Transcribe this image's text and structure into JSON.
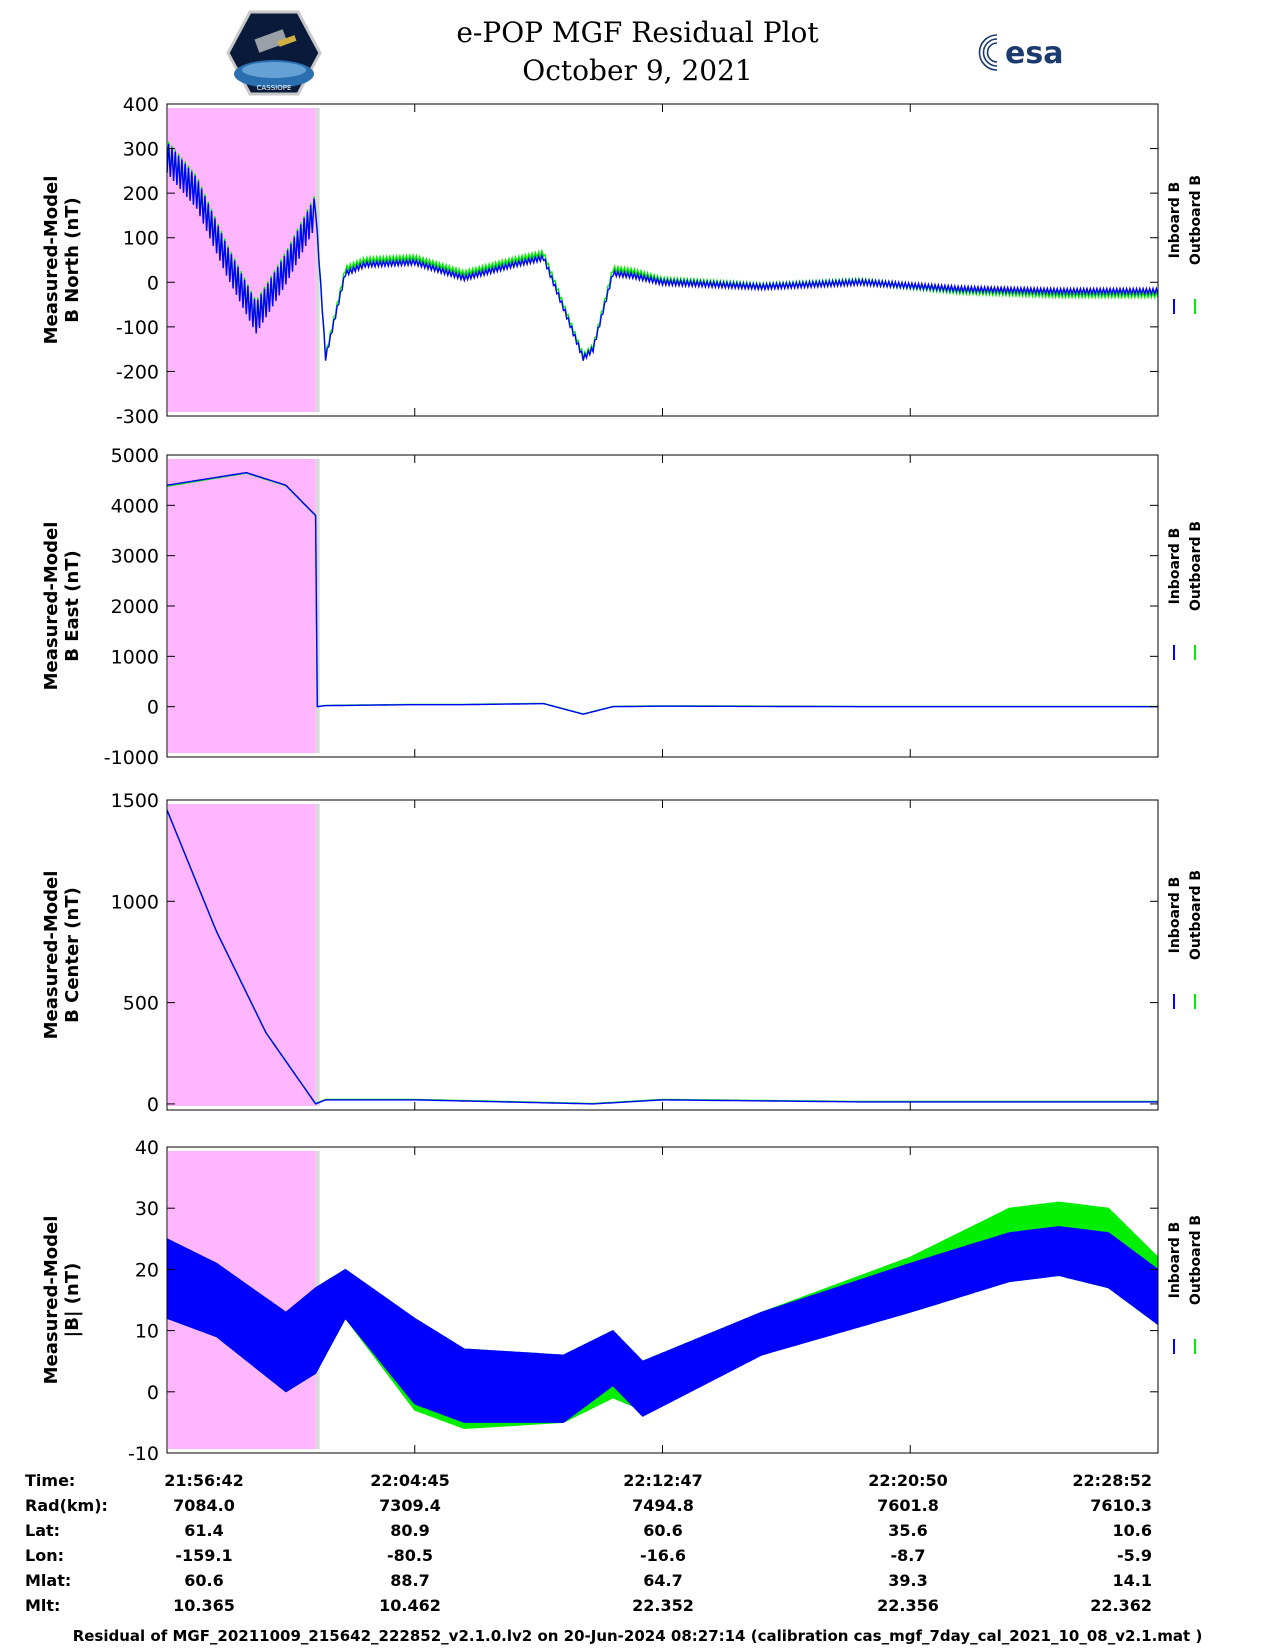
{
  "title": "e-POP MGF Residual Plot",
  "date": "October 9, 2021",
  "logos": {
    "left": "CASSIOPE",
    "right": "esa"
  },
  "colors": {
    "inboard": "#0000ff",
    "outboard": "#00ee00",
    "shade": "#ffb6ff",
    "gap": "#d8d8d8"
  },
  "chart_data": [
    {
      "type": "line",
      "ylabel": [
        "Measured-Model",
        "B North (nT)"
      ],
      "ylim": [
        -300,
        400
      ],
      "yticks": [
        -300,
        -200,
        -100,
        0,
        100,
        200,
        300,
        400
      ],
      "legend": [
        "Inboard B",
        "Outboard B"
      ],
      "shaded_x_end": 0.15,
      "series": [
        {
          "name": "Inboard B",
          "x": [
            0,
            0.03,
            0.06,
            0.09,
            0.12,
            0.15,
            0.16,
            0.18,
            0.2,
            0.25,
            0.3,
            0.35,
            0.38,
            0.42,
            0.43,
            0.45,
            0.47,
            0.5,
            0.6,
            0.7,
            0.8,
            0.9,
            1.0
          ],
          "values": [
            280,
            200,
            50,
            -80,
            30,
            160,
            -170,
            20,
            40,
            45,
            10,
            40,
            55,
            -170,
            -150,
            20,
            15,
            0,
            -10,
            0,
            -15,
            -20,
            -20
          ],
          "oscillation": 35
        },
        {
          "name": "Outboard B",
          "x": [
            0,
            0.03,
            0.06,
            0.09,
            0.12,
            0.15,
            0.16,
            0.18,
            0.2,
            0.25,
            0.3,
            0.35,
            0.38,
            0.42,
            0.43,
            0.45,
            0.47,
            0.5,
            0.6,
            0.7,
            0.8,
            0.9,
            1.0
          ],
          "values": [
            285,
            205,
            55,
            -75,
            35,
            165,
            -165,
            30,
            50,
            55,
            20,
            50,
            65,
            -165,
            -145,
            30,
            25,
            5,
            -8,
            2,
            -20,
            -28,
            -28
          ],
          "oscillation": 35
        }
      ]
    },
    {
      "type": "line",
      "ylabel": [
        "Measured-Model",
        "B East (nT)"
      ],
      "ylim": [
        -1000,
        5000
      ],
      "yticks": [
        -1000,
        0,
        1000,
        2000,
        3000,
        4000,
        5000
      ],
      "legend": [
        "Inboard B",
        "Outboard B"
      ],
      "shaded_x_end": 0.15,
      "series": [
        {
          "name": "Inboard B",
          "x": [
            0,
            0.08,
            0.12,
            0.15,
            0.151,
            0.16,
            0.25,
            0.3,
            0.38,
            0.42,
            0.45,
            0.5,
            0.7,
            1.0
          ],
          "values": [
            4400,
            4650,
            4400,
            3800,
            0,
            20,
            40,
            40,
            60,
            -150,
            0,
            10,
            0,
            0
          ]
        },
        {
          "name": "Outboard B",
          "x": [
            0,
            0.08,
            0.12,
            0.15,
            0.151,
            0.16,
            0.25,
            0.3,
            0.38,
            0.42,
            0.45,
            0.5,
            0.7,
            1.0
          ],
          "values": [
            4380,
            4640,
            4390,
            3790,
            0,
            25,
            45,
            45,
            65,
            -145,
            5,
            15,
            5,
            5
          ]
        }
      ]
    },
    {
      "type": "line",
      "ylabel": [
        "Measured-Model",
        "B Center (nT)"
      ],
      "ylim": [
        -30,
        1500
      ],
      "yticks": [
        0,
        500,
        1000,
        1500
      ],
      "legend": [
        "Inboard B",
        "Outboard B"
      ],
      "shaded_x_end": 0.15,
      "series": [
        {
          "name": "Inboard B",
          "x": [
            0,
            0.05,
            0.1,
            0.15,
            0.16,
            0.25,
            0.43,
            0.5,
            0.7,
            1.0
          ],
          "values": [
            1450,
            850,
            350,
            0,
            20,
            20,
            0,
            20,
            10,
            10
          ]
        },
        {
          "name": "Outboard B",
          "x": [
            0,
            0.05,
            0.1,
            0.15,
            0.16,
            0.25,
            0.43,
            0.5,
            0.7,
            1.0
          ],
          "values": [
            1452,
            852,
            352,
            2,
            22,
            22,
            2,
            22,
            12,
            12
          ]
        }
      ]
    },
    {
      "type": "area",
      "ylabel": [
        "Measured-Model",
        "|B| (nT)"
      ],
      "ylim": [
        -10,
        40
      ],
      "yticks": [
        -10,
        0,
        10,
        20,
        30,
        40
      ],
      "legend": [
        "Inboard B",
        "Outboard B"
      ],
      "shaded_x_end": 0.15,
      "series": [
        {
          "name": "Outboard B",
          "x": [
            0,
            0.05,
            0.12,
            0.15,
            0.18,
            0.25,
            0.3,
            0.4,
            0.45,
            0.48,
            0.6,
            0.75,
            0.85,
            0.9,
            0.95,
            1.0
          ],
          "upper": [
            25,
            21,
            13,
            17,
            20,
            12,
            7,
            6,
            10,
            5,
            13,
            22,
            30,
            31,
            30,
            22
          ],
          "lower": [
            12,
            9,
            0,
            3,
            12,
            -3,
            -6,
            -5,
            -1,
            -3,
            7,
            13,
            18,
            19,
            17,
            11
          ]
        },
        {
          "name": "Inboard B",
          "x": [
            0,
            0.05,
            0.12,
            0.15,
            0.18,
            0.25,
            0.3,
            0.4,
            0.45,
            0.48,
            0.6,
            0.75,
            0.85,
            0.9,
            0.95,
            1.0
          ],
          "upper": [
            25,
            21,
            13,
            17,
            20,
            12,
            7,
            6,
            10,
            5,
            13,
            21,
            26,
            27,
            26,
            20
          ],
          "lower": [
            12,
            9,
            0,
            3,
            12,
            -2,
            -5,
            -5,
            1,
            -4,
            6,
            13,
            18,
            19,
            17,
            11
          ]
        }
      ]
    }
  ],
  "ephemeris": {
    "labels": [
      "Time:",
      "Rad(km):",
      "Lat:",
      "Lon:",
      "Mlat:",
      "Mlt:"
    ],
    "columns": [
      [
        "21:56:42",
        "7084.0",
        "61.4",
        "-159.1",
        "60.6",
        "10.365"
      ],
      [
        "22:04:45",
        "7309.4",
        "80.9",
        "-80.5",
        "88.7",
        "10.462"
      ],
      [
        "22:12:47",
        "7494.8",
        "60.6",
        "-16.6",
        "64.7",
        "22.352"
      ],
      [
        "22:20:50",
        "7601.8",
        "35.6",
        "-8.7",
        "39.3",
        "22.356"
      ],
      [
        "22:28:52",
        "7610.3",
        "10.6",
        "-5.9",
        "14.1",
        "22.362"
      ]
    ]
  },
  "footer": "Residual of MGF_20211009_215642_222852_v2.1.0.lv2 on 20-Jun-2024 08:27:14 (calibration cas_mgf_7day_cal_2021_10_08_v2.1.mat )"
}
